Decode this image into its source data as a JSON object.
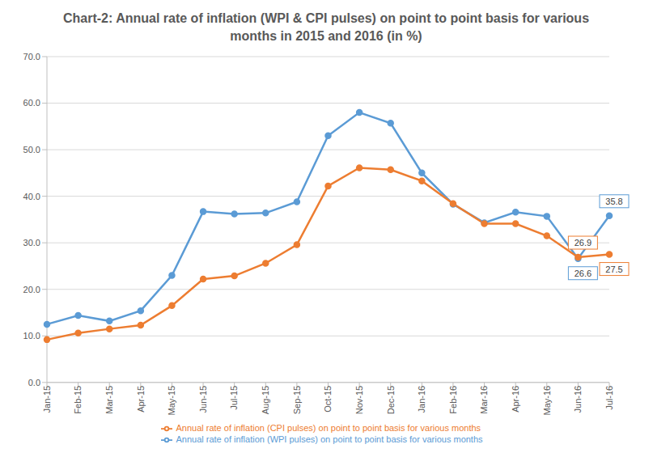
{
  "chart_data": {
    "type": "line",
    "title": "Chart-2: Annual rate of inflation (WPI & CPI pulses) on point to point basis for various months in 2015 and 2016 (in %)",
    "categories": [
      "Jan-15",
      "Feb-15",
      "Mar-15",
      "Apr-15",
      "May-15",
      "Jun-15",
      "Jul-15",
      "Aug-15",
      "Sep-15",
      "Oct-15",
      "Nov-15",
      "Dec-15",
      "Jan-16",
      "Feb-16",
      "Mar-16",
      "Apr-16",
      "May-16",
      "Jun-16",
      "Jul-16"
    ],
    "series": [
      {
        "name": "Annual rate of inflation (WPI pulses) on point to point basis for various months",
        "color": "#5B9BD5",
        "marker": "circle",
        "values": [
          12.5,
          14.4,
          13.2,
          15.4,
          23.0,
          36.7,
          36.2,
          36.4,
          38.8,
          53.0,
          58.0,
          55.7,
          45.0,
          38.3,
          34.3,
          36.6,
          35.7,
          26.6,
          35.8
        ],
        "value_labels": [
          null,
          null,
          null,
          null,
          null,
          null,
          null,
          null,
          null,
          null,
          null,
          null,
          null,
          null,
          null,
          null,
          null,
          "26.6",
          "35.8"
        ]
      },
      {
        "name": "Annual rate of inflation (CPI pulses) on point to point basis for various months",
        "color": "#ED7D31",
        "marker": "circle",
        "values": [
          9.2,
          10.6,
          11.5,
          12.3,
          16.5,
          22.2,
          22.9,
          25.6,
          29.6,
          42.2,
          46.1,
          45.7,
          43.3,
          38.4,
          34.1,
          34.1,
          31.5,
          26.9,
          27.5
        ],
        "value_labels": [
          null,
          null,
          null,
          null,
          null,
          null,
          null,
          null,
          null,
          null,
          null,
          null,
          null,
          null,
          null,
          null,
          null,
          "26.9",
          "27.5"
        ]
      }
    ],
    "ylim": [
      0,
      70
    ],
    "yticks": [
      {
        "value": 0,
        "label": "0.0"
      },
      {
        "value": 10,
        "label": "10.0"
      },
      {
        "value": 20,
        "label": "20.0"
      },
      {
        "value": 30,
        "label": "30.0"
      },
      {
        "value": 40,
        "label": "40.0"
      },
      {
        "value": 50,
        "label": "50.0"
      },
      {
        "value": 60,
        "label": "60.0"
      },
      {
        "value": 70,
        "label": "70.0"
      }
    ],
    "grid": true,
    "legend": "bottom"
  }
}
